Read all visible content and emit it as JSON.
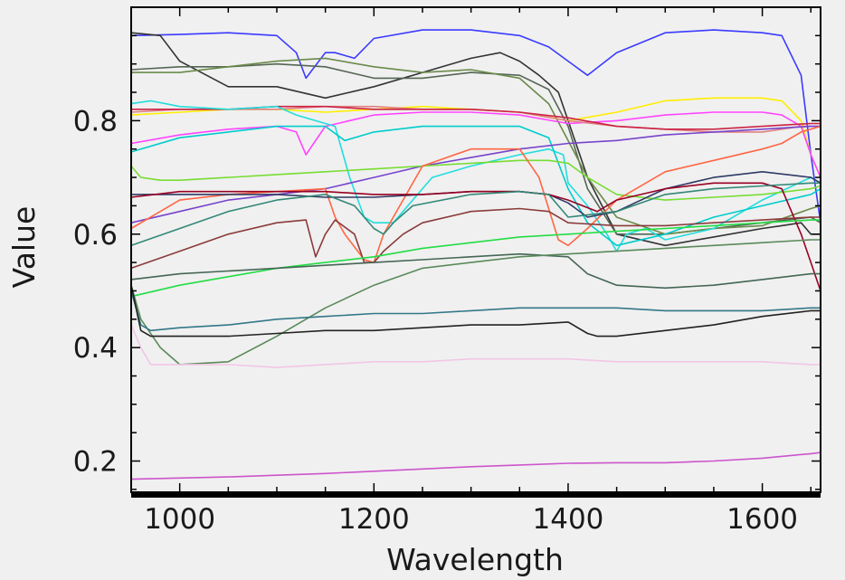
{
  "chart_data": {
    "type": "line",
    "title": "",
    "xlabel": "Wavelength",
    "ylabel": "Value",
    "xlim": [
      950,
      1660
    ],
    "ylim": [
      0.145,
      1.0
    ],
    "x_ticks": [
      1000,
      1200,
      1400,
      1600
    ],
    "x_tick_labels": [
      "1000",
      "1200",
      "1400",
      "1600"
    ],
    "y_ticks": [
      0.2,
      0.4,
      0.6,
      0.8
    ],
    "y_tick_labels": [
      "0.2",
      "0.4",
      "0.6",
      "0.8"
    ],
    "grid": false,
    "legend": "none",
    "series": [
      {
        "color": "#3a3aff",
        "x": [
          950,
          1000,
          1050,
          1100,
          1120,
          1130,
          1150,
          1160,
          1180,
          1200,
          1250,
          1300,
          1350,
          1380,
          1400,
          1420,
          1450,
          1500,
          1550,
          1600,
          1620,
          1640,
          1650,
          1660
        ],
        "y": [
          0.95,
          0.952,
          0.955,
          0.95,
          0.92,
          0.875,
          0.92,
          0.92,
          0.91,
          0.945,
          0.96,
          0.96,
          0.95,
          0.93,
          0.905,
          0.88,
          0.92,
          0.955,
          0.96,
          0.955,
          0.95,
          0.88,
          0.74,
          0.62
        ]
      },
      {
        "color": "#333333",
        "x": [
          950,
          980,
          1000,
          1050,
          1100,
          1150,
          1200,
          1250,
          1300,
          1330,
          1350,
          1370,
          1390,
          1400,
          1420,
          1450,
          1500,
          1550,
          1600,
          1620,
          1640,
          1650,
          1660
        ],
        "y": [
          0.955,
          0.95,
          0.905,
          0.86,
          0.86,
          0.84,
          0.86,
          0.885,
          0.91,
          0.92,
          0.905,
          0.88,
          0.85,
          0.8,
          0.7,
          0.6,
          0.58,
          0.595,
          0.61,
          0.615,
          0.62,
          0.6,
          0.6
        ]
      },
      {
        "color": "#556655",
        "x": [
          950,
          1000,
          1050,
          1100,
          1150,
          1200,
          1250,
          1300,
          1350,
          1380,
          1400,
          1420,
          1450,
          1500,
          1550,
          1600,
          1650,
          1660
        ],
        "y": [
          0.89,
          0.895,
          0.895,
          0.9,
          0.895,
          0.875,
          0.875,
          0.885,
          0.88,
          0.855,
          0.79,
          0.68,
          0.6,
          0.6,
          0.61,
          0.62,
          0.63,
          0.62
        ]
      },
      {
        "color": "#6a8a4a",
        "x": [
          950,
          1000,
          1050,
          1100,
          1150,
          1200,
          1250,
          1300,
          1350,
          1380,
          1420,
          1450,
          1500,
          1550,
          1600,
          1650,
          1660
        ],
        "y": [
          0.885,
          0.885,
          0.895,
          0.905,
          0.91,
          0.895,
          0.885,
          0.89,
          0.875,
          0.83,
          0.7,
          0.63,
          0.6,
          0.61,
          0.615,
          0.645,
          0.65
        ]
      },
      {
        "color": "#ffee00",
        "x": [
          950,
          1000,
          1050,
          1100,
          1150,
          1200,
          1250,
          1300,
          1350,
          1400,
          1450,
          1500,
          1550,
          1600,
          1620,
          1640,
          1650,
          1660
        ],
        "y": [
          0.81,
          0.815,
          0.82,
          0.82,
          0.815,
          0.82,
          0.825,
          0.82,
          0.815,
          0.8,
          0.815,
          0.835,
          0.84,
          0.84,
          0.835,
          0.8,
          0.74,
          0.7
        ]
      },
      {
        "color": "#ff44ff",
        "x": [
          950,
          1000,
          1050,
          1100,
          1120,
          1130,
          1150,
          1200,
          1250,
          1300,
          1350,
          1400,
          1450,
          1500,
          1550,
          1600,
          1620,
          1640,
          1650,
          1660
        ],
        "y": [
          0.76,
          0.775,
          0.785,
          0.79,
          0.78,
          0.74,
          0.79,
          0.81,
          0.815,
          0.815,
          0.81,
          0.795,
          0.8,
          0.81,
          0.815,
          0.815,
          0.81,
          0.79,
          0.74,
          0.7
        ]
      },
      {
        "color": "#e08080",
        "x": [
          950,
          1000,
          1050,
          1100,
          1150,
          1200,
          1250,
          1300,
          1350,
          1400,
          1450,
          1500,
          1550,
          1600,
          1620,
          1640,
          1660
        ],
        "y": [
          0.815,
          0.82,
          0.82,
          0.82,
          0.825,
          0.825,
          0.82,
          0.82,
          0.815,
          0.8,
          0.79,
          0.785,
          0.78,
          0.78,
          0.785,
          0.79,
          0.79
        ]
      },
      {
        "color": "#cc2244",
        "x": [
          950,
          1000,
          1050,
          1100,
          1150,
          1200,
          1250,
          1300,
          1350,
          1400,
          1450,
          1500,
          1550,
          1600,
          1650,
          1660
        ],
        "y": [
          0.82,
          0.82,
          0.82,
          0.825,
          0.825,
          0.82,
          0.82,
          0.82,
          0.815,
          0.805,
          0.79,
          0.785,
          0.785,
          0.79,
          0.795,
          0.795
        ]
      },
      {
        "color": "#22dddd",
        "x": [
          950,
          970,
          1000,
          1050,
          1100,
          1120,
          1140,
          1160,
          1175,
          1190,
          1200,
          1220,
          1240,
          1260,
          1300,
          1350,
          1380,
          1395,
          1400,
          1420,
          1440,
          1450,
          1460,
          1480,
          1500,
          1550,
          1600,
          1650,
          1660
        ],
        "y": [
          0.83,
          0.835,
          0.825,
          0.82,
          0.825,
          0.81,
          0.8,
          0.79,
          0.7,
          0.63,
          0.62,
          0.62,
          0.66,
          0.7,
          0.72,
          0.74,
          0.75,
          0.74,
          0.69,
          0.65,
          0.6,
          0.57,
          0.6,
          0.61,
          0.59,
          0.61,
          0.66,
          0.7,
          0.69
        ]
      },
      {
        "color": "#00cccc",
        "x": [
          950,
          1000,
          1050,
          1100,
          1150,
          1170,
          1200,
          1250,
          1300,
          1350,
          1380,
          1400,
          1420,
          1450,
          1500,
          1550,
          1600,
          1650,
          1660
        ],
        "y": [
          0.745,
          0.77,
          0.78,
          0.79,
          0.79,
          0.765,
          0.78,
          0.79,
          0.79,
          0.79,
          0.77,
          0.68,
          0.62,
          0.58,
          0.6,
          0.63,
          0.65,
          0.67,
          0.68
        ]
      },
      {
        "color": "#7744cc",
        "x": [
          950,
          1000,
          1050,
          1100,
          1150,
          1200,
          1250,
          1300,
          1350,
          1400,
          1450,
          1500,
          1550,
          1600,
          1650,
          1660
        ],
        "y": [
          0.62,
          0.64,
          0.66,
          0.67,
          0.68,
          0.7,
          0.72,
          0.735,
          0.75,
          0.76,
          0.765,
          0.775,
          0.78,
          0.785,
          0.79,
          0.79
        ]
      },
      {
        "color": "#77dd33",
        "x": [
          950,
          960,
          980,
          1000,
          1050,
          1100,
          1150,
          1200,
          1250,
          1300,
          1350,
          1380,
          1400,
          1420,
          1450,
          1500,
          1550,
          1600,
          1650,
          1660
        ],
        "y": [
          0.72,
          0.7,
          0.695,
          0.695,
          0.7,
          0.705,
          0.71,
          0.715,
          0.72,
          0.725,
          0.73,
          0.73,
          0.725,
          0.7,
          0.67,
          0.66,
          0.665,
          0.67,
          0.68,
          0.685
        ]
      },
      {
        "color": "#ff6644",
        "x": [
          950,
          980,
          1000,
          1050,
          1100,
          1150,
          1160,
          1170,
          1190,
          1200,
          1210,
          1250,
          1300,
          1350,
          1370,
          1390,
          1400,
          1420,
          1450,
          1500,
          1550,
          1600,
          1620,
          1640,
          1660
        ],
        "y": [
          0.61,
          0.64,
          0.66,
          0.67,
          0.675,
          0.68,
          0.63,
          0.6,
          0.555,
          0.55,
          0.6,
          0.72,
          0.75,
          0.75,
          0.7,
          0.59,
          0.58,
          0.61,
          0.66,
          0.71,
          0.73,
          0.75,
          0.76,
          0.78,
          0.79
        ]
      },
      {
        "color": "#2f3a66",
        "x": [
          950,
          1000,
          1050,
          1100,
          1150,
          1200,
          1250,
          1300,
          1350,
          1380,
          1400,
          1420,
          1450,
          1500,
          1550,
          1600,
          1650,
          1660
        ],
        "y": [
          0.67,
          0.67,
          0.67,
          0.67,
          0.665,
          0.665,
          0.67,
          0.675,
          0.675,
          0.67,
          0.655,
          0.63,
          0.64,
          0.68,
          0.7,
          0.71,
          0.7,
          0.69
        ]
      },
      {
        "color": "#990022",
        "x": [
          950,
          1000,
          1050,
          1100,
          1150,
          1200,
          1250,
          1300,
          1350,
          1380,
          1400,
          1430,
          1450,
          1500,
          1550,
          1600,
          1620,
          1640,
          1650,
          1660
        ],
        "y": [
          0.665,
          0.675,
          0.675,
          0.675,
          0.675,
          0.67,
          0.67,
          0.675,
          0.675,
          0.67,
          0.66,
          0.64,
          0.66,
          0.68,
          0.69,
          0.69,
          0.68,
          0.6,
          0.55,
          0.5
        ]
      },
      {
        "color": "#338877",
        "x": [
          950,
          1000,
          1050,
          1100,
          1150,
          1180,
          1200,
          1210,
          1220,
          1240,
          1300,
          1350,
          1380,
          1400,
          1450,
          1500,
          1550,
          1600,
          1650,
          1660
        ],
        "y": [
          0.58,
          0.61,
          0.64,
          0.66,
          0.67,
          0.65,
          0.61,
          0.6,
          0.62,
          0.65,
          0.67,
          0.675,
          0.67,
          0.63,
          0.64,
          0.67,
          0.68,
          0.685,
          0.69,
          0.69
        ]
      },
      {
        "color": "#8b3a3a",
        "x": [
          950,
          1000,
          1050,
          1100,
          1130,
          1140,
          1150,
          1160,
          1180,
          1190,
          1200,
          1210,
          1230,
          1250,
          1300,
          1350,
          1380,
          1400,
          1450,
          1500,
          1550,
          1600,
          1650,
          1660
        ],
        "y": [
          0.54,
          0.57,
          0.6,
          0.62,
          0.625,
          0.56,
          0.6,
          0.625,
          0.6,
          0.55,
          0.55,
          0.57,
          0.6,
          0.62,
          0.64,
          0.645,
          0.64,
          0.62,
          0.615,
          0.615,
          0.62,
          0.625,
          0.63,
          0.63
        ]
      },
      {
        "color": "#22dd44",
        "x": [
          950,
          1000,
          1050,
          1100,
          1150,
          1200,
          1250,
          1300,
          1350,
          1400,
          1450,
          1500,
          1550,
          1600,
          1650,
          1660
        ],
        "y": [
          0.49,
          0.51,
          0.525,
          0.54,
          0.55,
          0.56,
          0.575,
          0.585,
          0.595,
          0.6,
          0.605,
          0.61,
          0.615,
          0.62,
          0.625,
          0.625
        ]
      },
      {
        "color": "#446655",
        "x": [
          950,
          1000,
          1050,
          1100,
          1150,
          1200,
          1250,
          1300,
          1350,
          1400,
          1420,
          1450,
          1500,
          1550,
          1600,
          1650,
          1660
        ],
        "y": [
          0.52,
          0.53,
          0.535,
          0.54,
          0.545,
          0.55,
          0.555,
          0.56,
          0.565,
          0.56,
          0.53,
          0.51,
          0.505,
          0.51,
          0.52,
          0.53,
          0.53
        ]
      },
      {
        "color": "#5a8a5a",
        "x": [
          950,
          960,
          980,
          1000,
          1050,
          1100,
          1150,
          1200,
          1250,
          1300,
          1350,
          1400,
          1450,
          1500,
          1550,
          1600,
          1650,
          1660
        ],
        "y": [
          0.51,
          0.45,
          0.4,
          0.37,
          0.375,
          0.42,
          0.47,
          0.51,
          0.54,
          0.55,
          0.56,
          0.565,
          0.57,
          0.575,
          0.58,
          0.585,
          0.59,
          0.59
        ]
      },
      {
        "color": "#337788",
        "x": [
          950,
          960,
          970,
          1000,
          1050,
          1100,
          1150,
          1200,
          1250,
          1300,
          1350,
          1400,
          1450,
          1500,
          1550,
          1600,
          1650,
          1660
        ],
        "y": [
          0.5,
          0.44,
          0.43,
          0.435,
          0.44,
          0.45,
          0.455,
          0.46,
          0.46,
          0.465,
          0.47,
          0.47,
          0.47,
          0.465,
          0.465,
          0.465,
          0.47,
          0.47
        ]
      },
      {
        "color": "#222222",
        "x": [
          950,
          960,
          970,
          1000,
          1050,
          1100,
          1150,
          1200,
          1250,
          1300,
          1350,
          1400,
          1420,
          1430,
          1450,
          1500,
          1550,
          1600,
          1650,
          1660
        ],
        "y": [
          0.51,
          0.43,
          0.42,
          0.42,
          0.42,
          0.425,
          0.43,
          0.43,
          0.435,
          0.44,
          0.44,
          0.445,
          0.425,
          0.42,
          0.42,
          0.43,
          0.44,
          0.455,
          0.465,
          0.465
        ]
      },
      {
        "color": "#f2c6e6",
        "x": [
          950,
          960,
          970,
          1000,
          1050,
          1100,
          1150,
          1200,
          1250,
          1300,
          1350,
          1400,
          1450,
          1500,
          1550,
          1600,
          1650,
          1660
        ],
        "y": [
          0.44,
          0.4,
          0.37,
          0.37,
          0.37,
          0.365,
          0.37,
          0.375,
          0.375,
          0.38,
          0.38,
          0.38,
          0.375,
          0.375,
          0.375,
          0.375,
          0.37,
          0.37
        ]
      },
      {
        "color": "#cc55cc",
        "x": [
          950,
          1000,
          1050,
          1100,
          1150,
          1200,
          1250,
          1300,
          1350,
          1400,
          1450,
          1500,
          1550,
          1600,
          1650,
          1660
        ],
        "y": [
          0.168,
          0.17,
          0.172,
          0.175,
          0.178,
          0.182,
          0.186,
          0.19,
          0.193,
          0.196,
          0.197,
          0.197,
          0.2,
          0.205,
          0.213,
          0.215
        ]
      }
    ]
  }
}
